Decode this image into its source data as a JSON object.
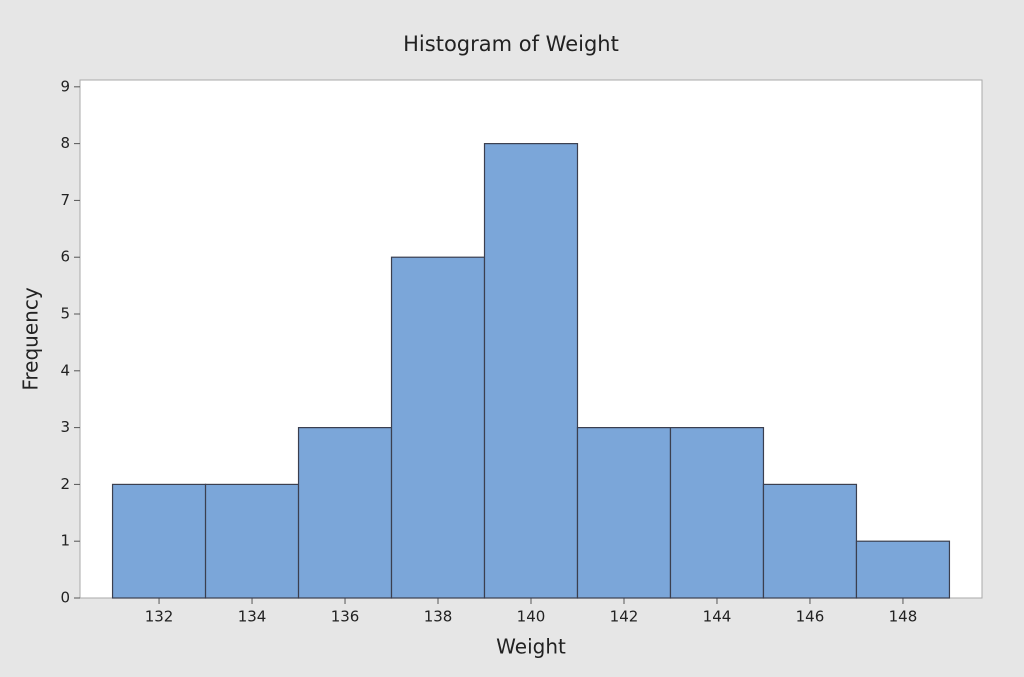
{
  "chart_data": {
    "type": "histogram",
    "title": "Histogram of Weight",
    "x_label": "Weight",
    "y_label": "Frequency",
    "bins": [
      131,
      133,
      135,
      137,
      139,
      141,
      143,
      145,
      147,
      149
    ],
    "values": [
      2,
      2,
      3,
      6,
      8,
      3,
      3,
      2,
      1
    ],
    "color": "#7ba6d9",
    "xlim": [
      130.3,
      149.7
    ],
    "xticks": [
      132,
      134,
      136,
      138,
      140,
      142,
      144,
      146,
      148
    ],
    "ylim": [
      0,
      9.12
    ],
    "yticks": [
      0,
      1,
      2,
      3,
      4,
      5,
      6,
      7,
      8,
      9
    ]
  }
}
